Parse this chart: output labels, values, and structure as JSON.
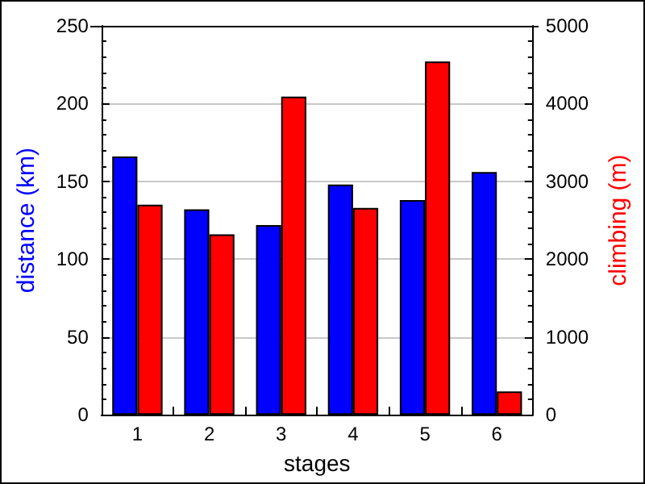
{
  "chart_data": {
    "type": "bar",
    "xlabel": "stages",
    "ylabel": "distance (km)",
    "y2label": "climbing (m)",
    "categories": [
      "1",
      "2",
      "3",
      "4",
      "5",
      "6"
    ],
    "series": [
      {
        "color": "#0000ff",
        "values": [
          166,
          132,
          122,
          148,
          138,
          156
        ]
      },
      {
        "color": "#ff0000",
        "axis": "y2",
        "values": [
          2700,
          2320,
          4090,
          2660,
          4540,
          300
        ]
      }
    ],
    "ylim": [
      0,
      250
    ],
    "yticks": [
      0,
      50,
      100,
      150,
      200,
      250
    ],
    "y2lim": [
      0,
      5000
    ],
    "y2ticks": [
      0,
      1000,
      2000,
      3000,
      4000,
      5000
    ],
    "grid": "y"
  }
}
